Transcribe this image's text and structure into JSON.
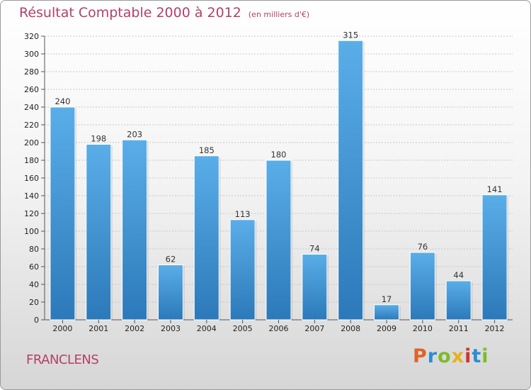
{
  "chart_data": {
    "type": "bar",
    "title": "Résultat Comptable 2000 à 2012",
    "subtitle": "(en milliers d'€)",
    "categories": [
      "2000",
      "2001",
      "2002",
      "2003",
      "2004",
      "2005",
      "2006",
      "2007",
      "2008",
      "2009",
      "2010",
      "2011",
      "2012"
    ],
    "values": [
      240,
      198,
      203,
      62,
      185,
      113,
      180,
      74,
      315,
      17,
      76,
      44,
      141
    ],
    "xlabel": "",
    "ylabel": "",
    "ylim": [
      0,
      320
    ],
    "ytick_step": 20,
    "grid": true,
    "bar_color_top": "#5aaee8",
    "bar_color_bottom": "#2c79b9"
  },
  "footer": {
    "location": "FRANCLENS",
    "brand": "Proxiti",
    "brand_colors": [
      "#e0632a",
      "#2a8ed0",
      "#7dbb2a",
      "#e8b020",
      "#d0342c",
      "#2a8ed0",
      "#7dbb2a"
    ]
  }
}
